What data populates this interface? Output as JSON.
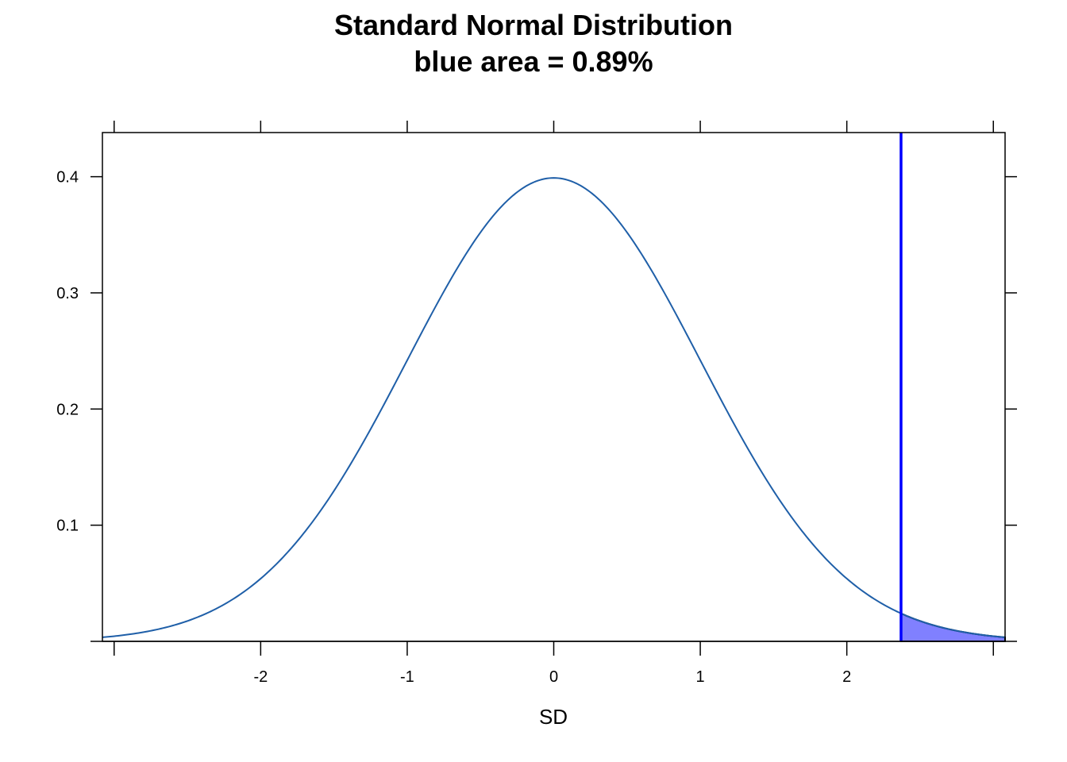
{
  "chart_data": {
    "type": "area",
    "title": "Standard Normal Distribution",
    "subtitle": "blue area = 0.89%",
    "xlabel": "SD",
    "ylabel": "",
    "xlim": [
      -3.08,
      3.08
    ],
    "ylim": [
      0,
      0.438
    ],
    "x_ticks": [
      {
        "value": -3,
        "label": ""
      },
      {
        "value": -2,
        "label": "-2"
      },
      {
        "value": -1,
        "label": "-1"
      },
      {
        "value": 0,
        "label": "0"
      },
      {
        "value": 1,
        "label": "1"
      },
      {
        "value": 2,
        "label": "2"
      },
      {
        "value": 3,
        "label": ""
      }
    ],
    "y_ticks": [
      {
        "value": 0.1,
        "label": "0.1"
      },
      {
        "value": 0.2,
        "label": "0.2"
      },
      {
        "value": 0.3,
        "label": "0.3"
      },
      {
        "value": 0.4,
        "label": "0.4"
      }
    ],
    "series": [
      {
        "distribution": "standard-normal",
        "mean": 0,
        "sd": 1,
        "x_range": [
          -3.08,
          3.08
        ],
        "color": "#1f5fa8"
      }
    ],
    "shaded_region": {
      "x_from": 2.37,
      "x_to": 3.08,
      "fill": "#8080ff",
      "stroke": "#000000",
      "area_percent": 0.89
    },
    "cutoff_line": {
      "x": 2.37,
      "color": "#0000ff"
    },
    "grid": false
  }
}
